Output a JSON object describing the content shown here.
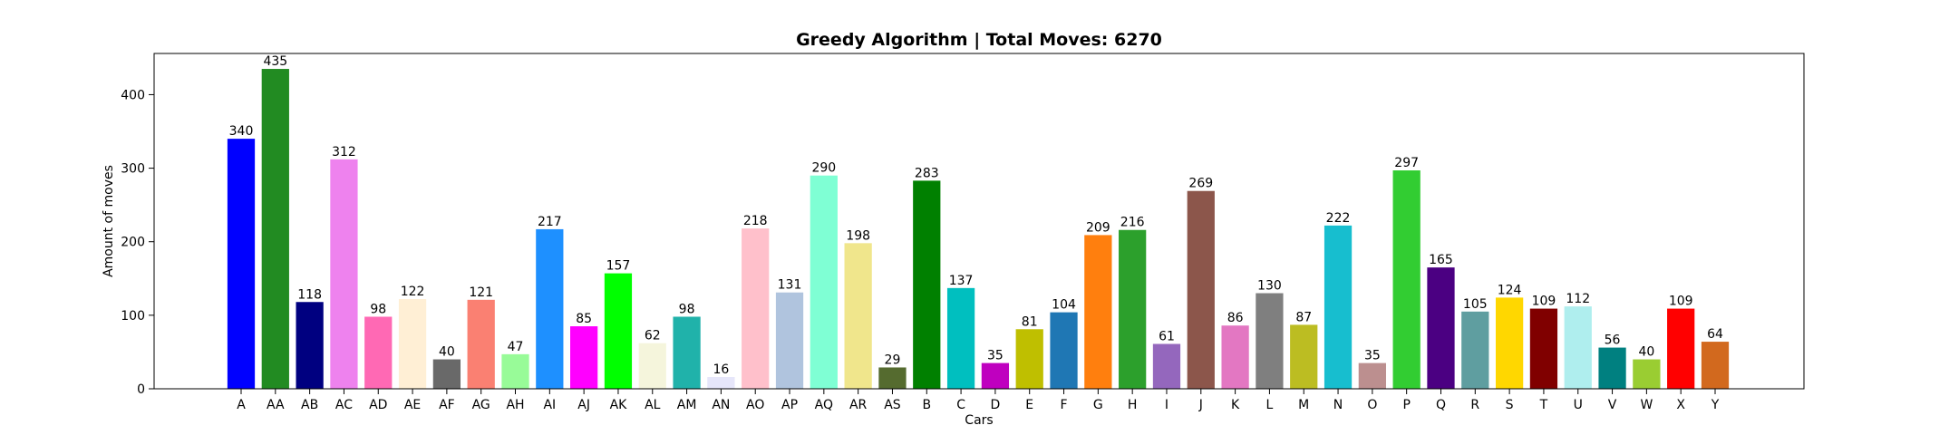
{
  "chart_data": {
    "type": "bar",
    "title": "Greedy Algorithm | Total Moves: 6270",
    "xlabel": "Cars",
    "ylabel": "Amount of moves",
    "ylim": [
      0,
      456
    ],
    "yticks": [
      0,
      100,
      200,
      300,
      400
    ],
    "grid": false,
    "categories": [
      "A",
      "AA",
      "AB",
      "AC",
      "AD",
      "AE",
      "AF",
      "AG",
      "AH",
      "AI",
      "AJ",
      "AK",
      "AL",
      "AM",
      "AN",
      "AO",
      "AP",
      "AQ",
      "AR",
      "AS",
      "B",
      "C",
      "D",
      "E",
      "F",
      "G",
      "H",
      "I",
      "J",
      "K",
      "L",
      "M",
      "N",
      "O",
      "P",
      "Q",
      "R",
      "S",
      "T",
      "U",
      "V",
      "W",
      "X",
      "Y"
    ],
    "values": [
      340,
      435,
      118,
      312,
      98,
      122,
      40,
      121,
      47,
      217,
      85,
      157,
      62,
      98,
      16,
      218,
      131,
      290,
      198,
      29,
      283,
      137,
      35,
      81,
      104,
      209,
      216,
      61,
      269,
      86,
      130,
      87,
      222,
      35,
      297,
      165,
      105,
      124,
      109,
      112,
      56,
      40,
      109,
      64
    ],
    "colors": [
      "#0000ff",
      "#228b22",
      "#000080",
      "#ee82ee",
      "#ff69b4",
      "#ffefd5",
      "#696969",
      "#fa8072",
      "#98fb98",
      "#1e90ff",
      "#ff00ff",
      "#00ff00",
      "#f5f5dc",
      "#20b2aa",
      "#e6e6fa",
      "#ffc0cb",
      "#b0c4de",
      "#7fffd4",
      "#f0e68c",
      "#556b2f",
      "#008000",
      "#00bfbf",
      "#bf00bf",
      "#bfbf00",
      "#1f77b4",
      "#ff7f0e",
      "#2ca02c",
      "#9467bd",
      "#8c564b",
      "#e377c2",
      "#7f7f7f",
      "#bcbd22",
      "#17becf",
      "#bc8f8f",
      "#32cd32",
      "#4b0082",
      "#5f9ea0",
      "#ffd700",
      "#800000",
      "#afeeee",
      "#008080",
      "#9acd32",
      "#ff0000",
      "#d2691e"
    ]
  }
}
